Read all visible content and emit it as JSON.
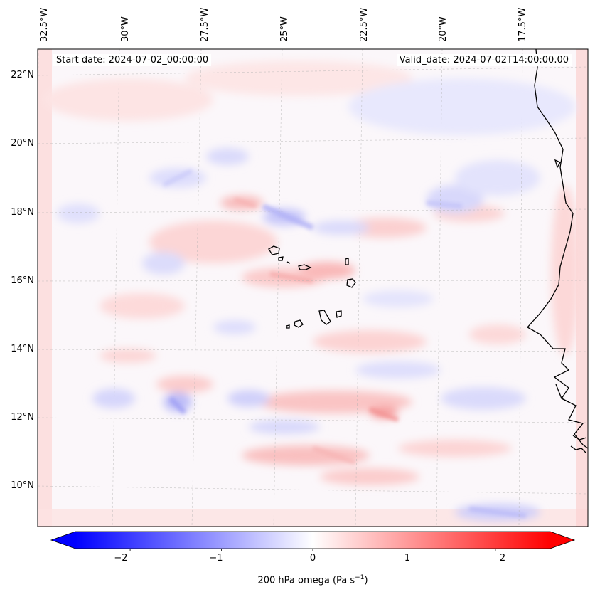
{
  "map": {
    "start_label": "Start date: 2024-07-02_00:00:00",
    "valid_label": "Valid_date: 2024-07-02T14:00:00.00",
    "lon_labels": [
      "32.5°W",
      "30°W",
      "27.5°W",
      "25°W",
      "22.5°W",
      "20°W",
      "17.5°W"
    ],
    "lat_labels": [
      "22°N",
      "20°N",
      "18°N",
      "16°N",
      "14°N",
      "12°N",
      "10°N"
    ],
    "field": "200 hPa omega",
    "units": "Pa s⁻¹",
    "coastline_color": "#000000",
    "gridline_color": "#b0b0b0"
  },
  "colorbar": {
    "ticks": [
      "−2",
      "−1",
      "0",
      "1",
      "2"
    ],
    "tick_values": [
      -2,
      -1,
      0,
      1,
      2
    ],
    "range": [
      -2.6,
      2.6
    ],
    "label_prefix": "200 hPa omega (Pa s",
    "label_exp": "−1",
    "label_suffix": ")",
    "colormap": "bwr",
    "low_color": "#0000ff",
    "mid_color": "#ffffff",
    "high_color": "#ff0000",
    "extend": "both"
  }
}
